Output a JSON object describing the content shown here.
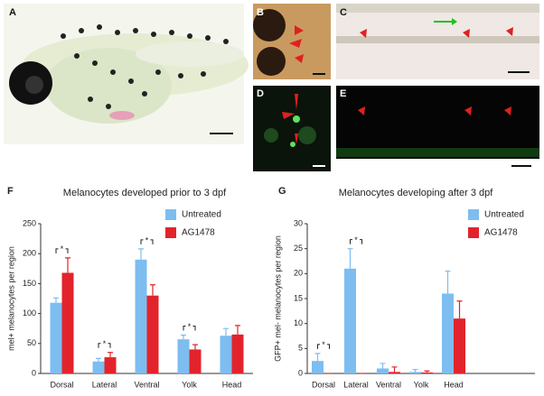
{
  "panels": {
    "A": "A",
    "B": "B",
    "C": "C",
    "D": "D",
    "E": "E"
  },
  "chart_data": [
    {
      "type": "bar",
      "label": "F",
      "title": "Melanocytes developed prior to 3 dpf",
      "y_label": "mel+ melanocytes per region",
      "categories": [
        "Dorsal",
        "Lateral",
        "Ventral",
        "Yolk",
        "Head"
      ],
      "series": [
        {
          "name": "Untreated",
          "color": "#7dbdf0",
          "values": [
            118,
            20,
            190,
            57,
            63
          ],
          "errors": [
            8,
            5,
            18,
            7,
            12
          ]
        },
        {
          "name": "AG1478",
          "color": "#e3232b",
          "values": [
            168,
            27,
            130,
            40,
            65
          ],
          "errors": [
            25,
            8,
            18,
            8,
            15
          ]
        }
      ],
      "significance": [
        "*",
        "*",
        "*",
        "*",
        null
      ],
      "ylim": [
        0,
        250
      ],
      "yticks": [
        0,
        50,
        100,
        150,
        200,
        250
      ]
    },
    {
      "type": "bar",
      "label": "G",
      "title": "Melanocytes developing after 3 dpf",
      "y_label": "GFP+ mel- melanocytes per region",
      "categories": [
        "Dorsal",
        "Lateral",
        "Ventral",
        "Yolk",
        "Head"
      ],
      "series": [
        {
          "name": "Untreated",
          "color": "#7dbdf0",
          "values": [
            2.5,
            21,
            1,
            0.3,
            16
          ],
          "errors": [
            1.5,
            4,
            1,
            0.5,
            4.5
          ]
        },
        {
          "name": "AG1478",
          "color": "#e3232b",
          "values": [
            0,
            0,
            0.3,
            0.2,
            11
          ],
          "errors": [
            0,
            0,
            1,
            0.3,
            3.5
          ]
        }
      ],
      "significance": [
        "*",
        "*",
        null,
        null,
        null
      ],
      "ylim": [
        0,
        30
      ],
      "yticks": [
        0,
        5,
        10,
        15,
        20,
        25,
        30
      ]
    }
  ]
}
